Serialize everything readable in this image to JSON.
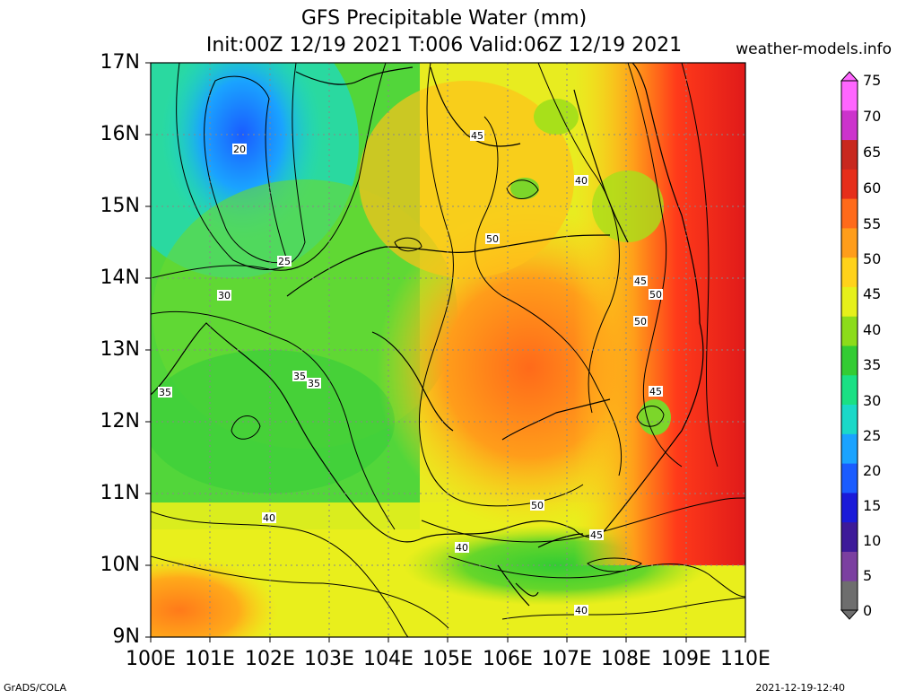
{
  "title": {
    "line1": "GFS Precipitable Water (mm)",
    "line2": "Init:00Z 12/19 2021 T:006 Valid:06Z 12/19 2021"
  },
  "site": "weather-models.info",
  "lat_labels": [
    "17N",
    "16N",
    "15N",
    "14N",
    "13N",
    "12N",
    "11N",
    "10N",
    "9N"
  ],
  "lon_labels": [
    "100E",
    "101E",
    "102E",
    "103E",
    "104E",
    "105E",
    "106E",
    "107E",
    "108E",
    "109E",
    "110E"
  ],
  "colorbar": {
    "labels": [
      "75",
      "70",
      "65",
      "60",
      "55",
      "50",
      "45",
      "40",
      "35",
      "30",
      "25",
      "20",
      "15",
      "10",
      "5",
      "0"
    ],
    "colors": [
      "#6e6e6e",
      "#7b3fa0",
      "#3d1a99",
      "#1a1ad9",
      "#1a5cff",
      "#1aa3ff",
      "#1ad9c8",
      "#1ae084",
      "#33cc33",
      "#8cdc1a",
      "#e6f01a",
      "#ffd21a",
      "#ff9d1a",
      "#ff6a1a",
      "#e62e1a",
      "#c8281e",
      "#cc33cc",
      "#ff66ff"
    ]
  },
  "contour_labels": [
    "20",
    "25",
    "30",
    "35",
    "35",
    "35",
    "40",
    "40",
    "40",
    "40",
    "45",
    "45",
    "45",
    "45",
    "50",
    "50",
    "50",
    "50"
  ],
  "footer": {
    "left": "GrADS/COLA",
    "right": "2021-12-19-12:40"
  }
}
